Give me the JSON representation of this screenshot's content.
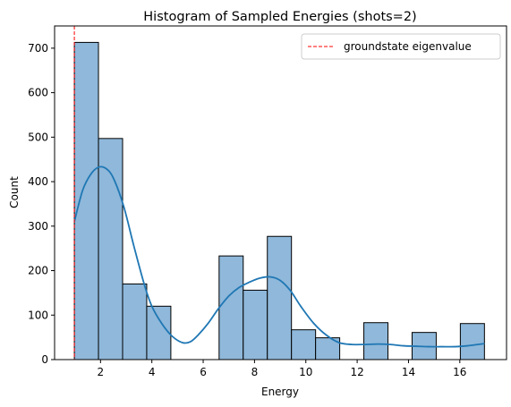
{
  "chart_data": {
    "type": "bar",
    "title": "Histogram of Sampled Energies (shots=2)",
    "xlabel": "Energy",
    "ylabel": "Count",
    "xlim": [
      0.21,
      17.82
    ],
    "ylim": [
      0,
      750
    ],
    "xticks": [
      2,
      4,
      6,
      8,
      10,
      12,
      14,
      16
    ],
    "yticks": [
      0,
      100,
      200,
      300,
      400,
      500,
      600,
      700
    ],
    "bins": [
      {
        "x0": 0.98,
        "x1": 1.92,
        "count": 713
      },
      {
        "x0": 1.92,
        "x1": 2.86,
        "count": 497
      },
      {
        "x0": 2.86,
        "x1": 3.8,
        "count": 170
      },
      {
        "x0": 3.8,
        "x1": 4.74,
        "count": 120
      },
      {
        "x0": 4.74,
        "x1": 5.68,
        "count": 0
      },
      {
        "x0": 5.68,
        "x1": 6.62,
        "count": 0
      },
      {
        "x0": 6.62,
        "x1": 7.56,
        "count": 233
      },
      {
        "x0": 7.56,
        "x1": 8.5,
        "count": 156
      },
      {
        "x0": 8.5,
        "x1": 9.44,
        "count": 277
      },
      {
        "x0": 9.44,
        "x1": 10.38,
        "count": 67
      },
      {
        "x0": 10.38,
        "x1": 11.32,
        "count": 49
      },
      {
        "x0": 11.32,
        "x1": 12.26,
        "count": 0
      },
      {
        "x0": 12.26,
        "x1": 13.2,
        "count": 83
      },
      {
        "x0": 13.2,
        "x1": 14.14,
        "count": 0
      },
      {
        "x0": 14.14,
        "x1": 15.08,
        "count": 61
      },
      {
        "x0": 15.08,
        "x1": 16.02,
        "count": 0
      },
      {
        "x0": 16.02,
        "x1": 16.96,
        "count": 81
      }
    ],
    "kde": {
      "x": [
        0.98,
        1.3,
        1.6,
        1.9,
        2.2,
        2.5,
        2.9,
        3.3,
        3.7,
        4.0,
        4.4,
        4.8,
        5.2,
        5.5,
        5.8,
        6.2,
        6.6,
        7.0,
        7.4,
        7.8,
        8.2,
        8.6,
        9.0,
        9.4,
        9.8,
        10.3,
        10.8,
        11.3,
        11.8,
        12.3,
        12.8,
        13.3,
        13.8,
        14.3,
        14.8,
        15.3,
        15.8,
        16.3,
        16.7,
        16.96
      ],
      "y": [
        310,
        380,
        415,
        432,
        430,
        408,
        345,
        255,
        170,
        120,
        80,
        52,
        38,
        40,
        55,
        82,
        115,
        143,
        162,
        174,
        183,
        186,
        178,
        155,
        120,
        82,
        55,
        38,
        34,
        34,
        35,
        34,
        31,
        30,
        29,
        29,
        29,
        31,
        34,
        36
      ]
    },
    "reference_line": {
      "x": 0.98,
      "label": "groundstate eigenvalue",
      "color": "#ff0000"
    },
    "bar_fill": "#8fb8da",
    "bar_edge": "#000000",
    "kde_color": "#1f77b4",
    "legend_position": "upper right",
    "grid": false
  }
}
